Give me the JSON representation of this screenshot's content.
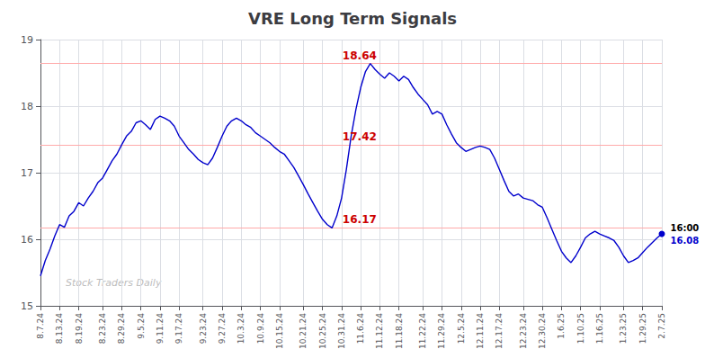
{
  "chart_data": {
    "type": "line",
    "title": "VRE Long Term Signals",
    "watermark": "Stock Traders Daily",
    "color": "#0000cc",
    "grid": true,
    "ylim": [
      15,
      19
    ],
    "yticks": [
      15,
      16,
      17,
      18,
      19
    ],
    "categories": [
      "8.7.24",
      null,
      null,
      null,
      "8.13.24",
      null,
      null,
      null,
      "8.19.24",
      null,
      null,
      null,
      null,
      "8.23.24",
      null,
      null,
      null,
      "8.29.24",
      null,
      null,
      null,
      "9.5.24",
      null,
      null,
      null,
      "9.11.24",
      null,
      null,
      null,
      "9.17.24",
      null,
      null,
      null,
      null,
      "9.23.24",
      null,
      null,
      null,
      "9.27.24",
      null,
      null,
      null,
      "10.3.24",
      null,
      null,
      null,
      "10.9.24",
      null,
      null,
      null,
      "10.15.24",
      null,
      null,
      null,
      null,
      "10.21.24",
      null,
      null,
      null,
      "10.25.24",
      null,
      null,
      null,
      "10.31.24",
      null,
      null,
      null,
      "11.6.24",
      null,
      null,
      null,
      "11.12.24",
      null,
      null,
      null,
      "11.18.24",
      null,
      null,
      null,
      null,
      "11.22.24",
      null,
      null,
      null,
      "11.29.24",
      null,
      null,
      null,
      "12.5.24",
      null,
      null,
      null,
      "12.11.24",
      null,
      null,
      null,
      "12.17.24",
      null,
      null,
      null,
      null,
      "12.23.24",
      null,
      null,
      null,
      "12.30.24",
      null,
      null,
      null,
      "1.6.25",
      null,
      null,
      null,
      "1.10.25",
      null,
      null,
      null,
      "1.16.25",
      null,
      null,
      null,
      null,
      "1.23.25",
      null,
      null,
      null,
      "1.29.25",
      null,
      null,
      null,
      "2.7.25"
    ],
    "values": [
      15.45,
      15.68,
      15.85,
      16.05,
      16.22,
      16.18,
      16.35,
      16.42,
      16.55,
      16.5,
      16.62,
      16.72,
      16.85,
      16.92,
      17.05,
      17.18,
      17.28,
      17.42,
      17.55,
      17.62,
      17.75,
      17.78,
      17.72,
      17.65,
      17.8,
      17.85,
      17.82,
      17.78,
      17.7,
      17.55,
      17.45,
      17.35,
      17.28,
      17.2,
      17.15,
      17.12,
      17.22,
      17.38,
      17.55,
      17.7,
      17.78,
      17.82,
      17.78,
      17.72,
      17.68,
      17.6,
      17.55,
      17.5,
      17.45,
      17.38,
      17.32,
      17.28,
      17.18,
      17.08,
      16.95,
      16.82,
      16.68,
      16.55,
      16.42,
      16.3,
      16.22,
      16.17,
      16.35,
      16.62,
      17.05,
      17.55,
      17.95,
      18.28,
      18.52,
      18.64,
      18.55,
      18.48,
      18.42,
      18.5,
      18.45,
      18.38,
      18.45,
      18.4,
      18.28,
      18.18,
      18.1,
      18.02,
      17.88,
      17.92,
      17.88,
      17.72,
      17.58,
      17.45,
      17.38,
      17.32,
      17.35,
      17.38,
      17.4,
      17.38,
      17.35,
      17.22,
      17.05,
      16.88,
      16.72,
      16.65,
      16.68,
      16.62,
      16.6,
      16.58,
      16.52,
      16.48,
      16.32,
      16.15,
      15.98,
      15.82,
      15.72,
      15.65,
      15.75,
      15.88,
      16.02,
      16.08,
      16.12,
      16.08,
      16.05,
      16.02,
      15.98,
      15.88,
      15.75,
      15.65,
      15.68,
      15.72,
      15.8,
      15.88,
      15.95,
      16.02,
      16.08
    ],
    "hlines": [
      {
        "value": 16.17,
        "label": "16.17",
        "x": "10.31.24",
        "color": "#ffaaaa",
        "label_color": "#cc0000"
      },
      {
        "value": 17.42,
        "label": "17.42",
        "x": "10.31.24",
        "color": "#ffaaaa",
        "label_color": "#cc0000"
      },
      {
        "value": 18.64,
        "label": "18.64",
        "x": "10.31.24",
        "color": "#ffaaaa",
        "label_color": "#cc0000"
      }
    ],
    "end_labels": [
      {
        "text": "16:00",
        "color": "#000000"
      },
      {
        "text": "16.08",
        "color": "#0000cc"
      }
    ]
  }
}
